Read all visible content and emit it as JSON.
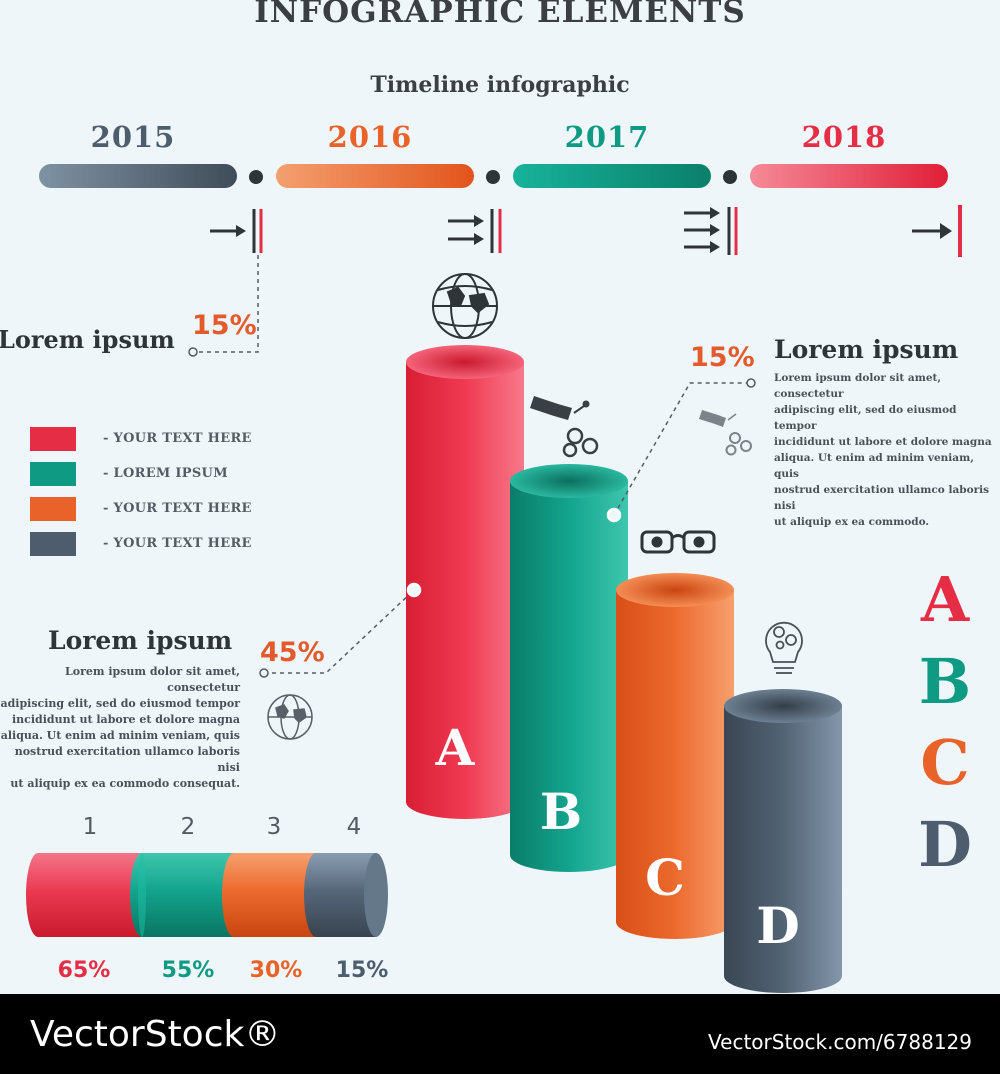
{
  "title": "INFOGRAPHIC ELEMENTS",
  "subtitle": "Timeline infographic",
  "timeline": {
    "years": [
      {
        "label": "2015",
        "color": "#4d5d6e"
      },
      {
        "label": "2016",
        "color": "#e8622a"
      },
      {
        "label": "2017",
        "color": "#0f9a84"
      },
      {
        "label": "2018",
        "color": "#e52d45"
      }
    ]
  },
  "callout_left": {
    "percent": "15%",
    "heading": "Lorem ipsum"
  },
  "callout_right": {
    "percent": "15%",
    "heading": "Lorem ipsum",
    "lines": [
      "Lorem ipsum dolor sit amet, consectetur",
      "adipiscing elit, sed do eiusmod tempor",
      "incididunt ut labore et dolore magna",
      "aliqua. Ut enim ad minim veniam, quis",
      "nostrud exercitation ullamco laboris nisi",
      "ut aliquip ex ea commodo."
    ]
  },
  "callout_bottom": {
    "percent": "45%",
    "heading": "Lorem ipsum",
    "lines": [
      "Lorem ipsum dolor sit amet, consectetur",
      "adipiscing elit, sed do eiusmod tempor",
      "incididunt ut labore et dolore magna",
      "aliqua. Ut enim ad minim veniam, quis",
      "nostrud exercitation ullamco laboris nisi",
      "ut aliquip ex ea commodo consequat."
    ]
  },
  "legend": [
    {
      "label": "- YOUR TEXT HERE",
      "color": "#e52d45"
    },
    {
      "label": "- LOREM IPSUM",
      "color": "#0f9a84"
    },
    {
      "label": "- YOUR TEXT HERE",
      "color": "#e8622a"
    },
    {
      "label": "- YOUR TEXT HERE",
      "color": "#4d5d6e"
    }
  ],
  "cylinders": [
    {
      "letter": "A",
      "color": "#e52d45"
    },
    {
      "letter": "B",
      "color": "#0f9a84"
    },
    {
      "letter": "C",
      "color": "#e8622a"
    },
    {
      "letter": "D",
      "color": "#4d5d6e"
    }
  ],
  "segments": [
    {
      "number": "1",
      "percent": "65%",
      "value": 65,
      "color": "#e52d45"
    },
    {
      "number": "2",
      "percent": "55%",
      "value": 55,
      "color": "#0f9a84"
    },
    {
      "number": "3",
      "percent": "30%",
      "value": 30,
      "color": "#e8622a"
    },
    {
      "number": "4",
      "percent": "15%",
      "value": 15,
      "color": "#4d5d6e"
    }
  ],
  "side_letters": [
    {
      "letter": "A",
      "color": "#e52d45"
    },
    {
      "letter": "B",
      "color": "#0f9a84"
    },
    {
      "letter": "C",
      "color": "#e8622a"
    },
    {
      "letter": "D",
      "color": "#4d5d6e"
    }
  ],
  "icons": [
    "globe-icon",
    "bottle-gears-icon",
    "eyeglasses-icon",
    "lightbulb-gears-icon"
  ],
  "footer": {
    "brand": "VectorStock®",
    "id": "VectorStock.com/6788129"
  }
}
